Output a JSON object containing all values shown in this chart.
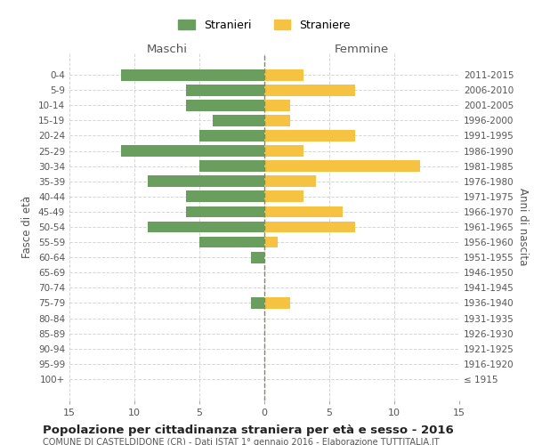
{
  "age_groups": [
    "100+",
    "95-99",
    "90-94",
    "85-89",
    "80-84",
    "75-79",
    "70-74",
    "65-69",
    "60-64",
    "55-59",
    "50-54",
    "45-49",
    "40-44",
    "35-39",
    "30-34",
    "25-29",
    "20-24",
    "15-19",
    "10-14",
    "5-9",
    "0-4"
  ],
  "birth_years": [
    "≤ 1915",
    "1916-1920",
    "1921-1925",
    "1926-1930",
    "1931-1935",
    "1936-1940",
    "1941-1945",
    "1946-1950",
    "1951-1955",
    "1956-1960",
    "1961-1965",
    "1966-1970",
    "1971-1975",
    "1976-1980",
    "1981-1985",
    "1986-1990",
    "1991-1995",
    "1996-2000",
    "2001-2005",
    "2006-2010",
    "2011-2015"
  ],
  "maschi": [
    0,
    0,
    0,
    0,
    0,
    1,
    0,
    0,
    1,
    5,
    9,
    6,
    6,
    9,
    5,
    11,
    5,
    4,
    6,
    6,
    11
  ],
  "femmine": [
    0,
    0,
    0,
    0,
    0,
    2,
    0,
    0,
    0,
    1,
    7,
    6,
    3,
    4,
    12,
    3,
    7,
    2,
    2,
    7,
    3
  ],
  "color_maschi": "#6a9e5e",
  "color_femmine": "#f5c242",
  "title": "Popolazione per cittadinanza straniera per età e sesso - 2016",
  "subtitle": "COMUNE DI CASTELDIDONE (CR) - Dati ISTAT 1° gennaio 2016 - Elaborazione TUTTITALIA.IT",
  "xlabel_left": "Maschi",
  "xlabel_right": "Femmine",
  "ylabel_left": "Fasce di età",
  "ylabel_right": "Anni di nascita",
  "legend_maschi": "Stranieri",
  "legend_femmine": "Straniere",
  "xlim": 15,
  "background_color": "#ffffff",
  "grid_color": "#cccccc"
}
